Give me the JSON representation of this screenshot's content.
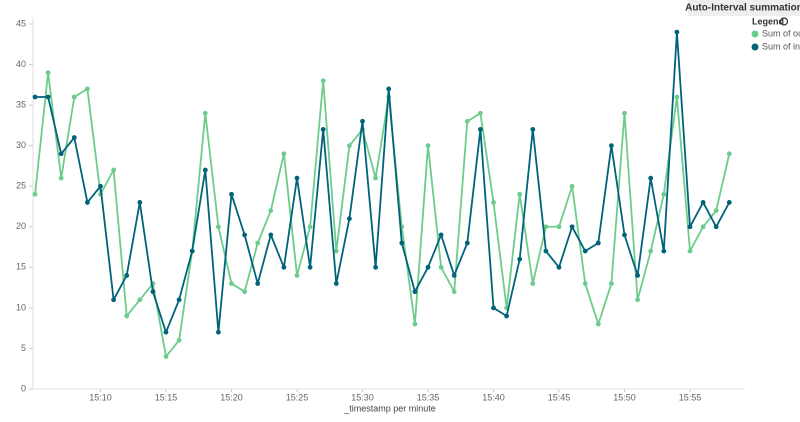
{
  "chart_data": {
    "type": "line",
    "title": "Auto-Interval summation",
    "legend_title": "Legend",
    "x_label": "_timestamp per minute",
    "categories": [
      null,
      null,
      null,
      null,
      null,
      "15:10",
      null,
      null,
      null,
      null,
      "15:15",
      null,
      null,
      null,
      null,
      "15:20",
      null,
      null,
      null,
      null,
      "15:25",
      null,
      null,
      null,
      null,
      "15:30",
      null,
      null,
      null,
      null,
      "15:35",
      null,
      null,
      null,
      null,
      "15:40",
      null,
      null,
      null,
      null,
      "15:45",
      null,
      null,
      null,
      null,
      "15:50",
      null,
      null,
      null,
      null,
      "15:55",
      null,
      null,
      null
    ],
    "series": [
      {
        "name": "Sum of out",
        "color": "#6dcc8b",
        "values": [
          24,
          39,
          26,
          36,
          37,
          24,
          27,
          9,
          11,
          13,
          4,
          6,
          17,
          34,
          20,
          13,
          12,
          18,
          22,
          29,
          14,
          20,
          38,
          17,
          30,
          32,
          26,
          36,
          20,
          8,
          30,
          15,
          12,
          33,
          34,
          23,
          10,
          24,
          13,
          20,
          20,
          25,
          13,
          8,
          13,
          34,
          11,
          17,
          24,
          36,
          17,
          20,
          22,
          29
        ]
      },
      {
        "name": "Sum of in",
        "color": "#00637a",
        "values": [
          36,
          36,
          29,
          31,
          23,
          25,
          11,
          14,
          23,
          12,
          7,
          11,
          17,
          27,
          7,
          24,
          19,
          13,
          19,
          15,
          26,
          15,
          32,
          13,
          21,
          33,
          15,
          37,
          18,
          12,
          15,
          19,
          14,
          18,
          32,
          10,
          9,
          16,
          32,
          17,
          15,
          20,
          17,
          18,
          30,
          19,
          14,
          26,
          17,
          44,
          20,
          23,
          20,
          23
        ]
      }
    ],
    "ylim": [
      0,
      45
    ],
    "yticks": [
      0,
      5,
      10,
      15,
      20,
      25,
      30,
      35,
      40,
      45
    ]
  }
}
